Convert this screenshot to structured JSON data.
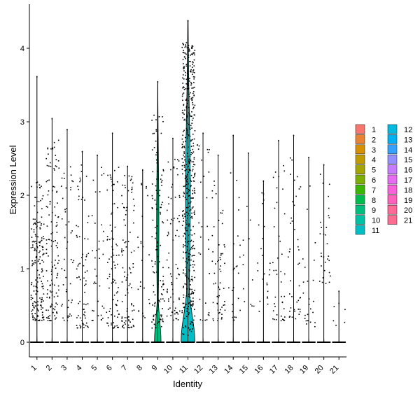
{
  "chart_data": {
    "type": "violin",
    "xlabel": "Identity",
    "ylabel": "Expression Level",
    "categories": [
      "1",
      "2",
      "3",
      "4",
      "5",
      "6",
      "7",
      "8",
      "9",
      "10",
      "11",
      "12",
      "13",
      "14",
      "15",
      "16",
      "17",
      "18",
      "19",
      "20",
      "21"
    ],
    "ylim": [
      -0.2,
      4.6
    ],
    "yticks": [
      0,
      1,
      2,
      3,
      4
    ],
    "legend": {
      "placement": "right",
      "columns": 2,
      "entries": [
        {
          "label": "1",
          "color": "#F8766D"
        },
        {
          "label": "2",
          "color": "#EA8331"
        },
        {
          "label": "3",
          "color": "#D89000"
        },
        {
          "label": "4",
          "color": "#C09B00"
        },
        {
          "label": "5",
          "color": "#A3A500"
        },
        {
          "label": "6",
          "color": "#7CAE00"
        },
        {
          "label": "7",
          "color": "#39B600"
        },
        {
          "label": "8",
          "color": "#00BB4E"
        },
        {
          "label": "9",
          "color": "#00BF7D"
        },
        {
          "label": "10",
          "color": "#00C1A3"
        },
        {
          "label": "11",
          "color": "#00BFC4"
        },
        {
          "label": "12",
          "color": "#00BAE0"
        },
        {
          "label": "13",
          "color": "#00B0F6"
        },
        {
          "label": "14",
          "color": "#35A2FF"
        },
        {
          "label": "15",
          "color": "#9590FF"
        },
        {
          "label": "16",
          "color": "#C77CFF"
        },
        {
          "label": "17",
          "color": "#E76BF3"
        },
        {
          "label": "18",
          "color": "#FA62DB"
        },
        {
          "label": "19",
          "color": "#FF62BC"
        },
        {
          "label": "20",
          "color": "#FF6A98"
        },
        {
          "label": "21",
          "color": "#FF6C91"
        }
      ]
    },
    "groups": [
      {
        "name": "1",
        "max": 3.62,
        "density": 0.3,
        "band": [
          0.3,
          2.2
        ],
        "violin_width": 0.02
      },
      {
        "name": "2",
        "max": 3.05,
        "density": 0.22,
        "band": [
          0.3,
          2.8
        ],
        "violin_width": 0.02
      },
      {
        "name": "3",
        "max": 2.9,
        "density": 0.08,
        "band": [
          0.3,
          2.5
        ],
        "violin_width": 0.02
      },
      {
        "name": "4",
        "max": 2.6,
        "density": 0.12,
        "band": [
          0.2,
          2.5
        ],
        "violin_width": 0.02
      },
      {
        "name": "5",
        "max": 2.55,
        "density": 0.06,
        "band": [
          0.3,
          2.4
        ],
        "violin_width": 0.02
      },
      {
        "name": "6",
        "max": 2.85,
        "density": 0.14,
        "band": [
          0.2,
          2.5
        ],
        "violin_width": 0.02
      },
      {
        "name": "7",
        "max": 2.4,
        "density": 0.16,
        "band": [
          0.2,
          2.4
        ],
        "violin_width": 0.02
      },
      {
        "name": "8",
        "max": 2.35,
        "density": 0.04,
        "band": [
          0.3,
          2.2
        ],
        "violin_width": 0.02
      },
      {
        "name": "9",
        "max": 3.55,
        "density": 0.2,
        "band": [
          0.2,
          3.1
        ],
        "violin_width": 0.45
      },
      {
        "name": "10",
        "max": 2.78,
        "density": 0.12,
        "band": [
          0.3,
          2.6
        ],
        "violin_width": 0.02
      },
      {
        "name": "11",
        "max": 4.38,
        "density": 0.8,
        "band": [
          0.1,
          4.1
        ],
        "violin_width": 0.95
      },
      {
        "name": "12",
        "max": 2.85,
        "density": 0.05,
        "band": [
          0.3,
          2.8
        ],
        "violin_width": 0.02
      },
      {
        "name": "13",
        "max": 2.55,
        "density": 0.1,
        "band": [
          0.3,
          2.2
        ],
        "violin_width": 0.02
      },
      {
        "name": "14",
        "max": 2.82,
        "density": 0.04,
        "band": [
          0.3,
          2.4
        ],
        "violin_width": 0.02
      },
      {
        "name": "15",
        "max": 2.58,
        "density": 0.02,
        "band": [
          0.4,
          2.3
        ],
        "violin_width": 0.02
      },
      {
        "name": "16",
        "max": 2.2,
        "density": 0.04,
        "band": [
          0.3,
          2.1
        ],
        "violin_width": 0.02
      },
      {
        "name": "17",
        "max": 2.75,
        "density": 0.07,
        "band": [
          0.3,
          2.6
        ],
        "violin_width": 0.02
      },
      {
        "name": "18",
        "max": 2.82,
        "density": 0.07,
        "band": [
          0.3,
          2.6
        ],
        "violin_width": 0.02
      },
      {
        "name": "19",
        "max": 2.52,
        "density": 0.04,
        "band": [
          0.2,
          2.3
        ],
        "violin_width": 0.02
      },
      {
        "name": "20",
        "max": 2.42,
        "density": 0.05,
        "band": [
          0.8,
          2.3
        ],
        "violin_width": 0.02
      },
      {
        "name": "21",
        "max": 0.7,
        "density": 0.01,
        "band": [
          0.2,
          0.7
        ],
        "violin_width": 0.02
      }
    ]
  }
}
